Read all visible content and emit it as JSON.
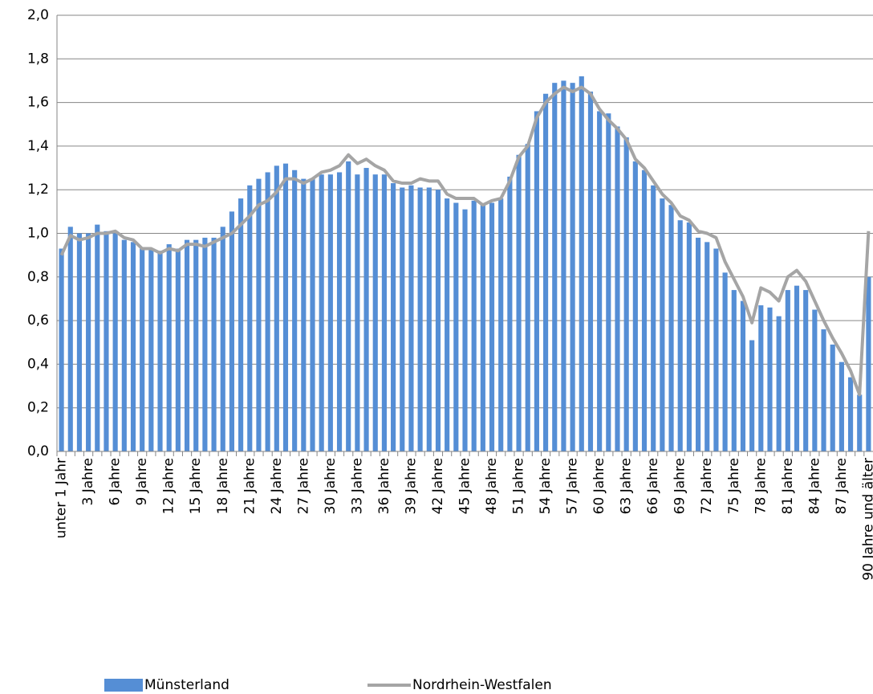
{
  "chart_data": {
    "type": "bar_line",
    "categories": [
      "unter 1 Jahr",
      null,
      null,
      "3 Jahre",
      null,
      null,
      "6 Jahre",
      null,
      null,
      "9 Jahre",
      null,
      null,
      "12 Jahre",
      null,
      null,
      "15 Jahre",
      null,
      null,
      "18 Jahre",
      null,
      null,
      "21 Jahre",
      null,
      null,
      "24 Jahre",
      null,
      null,
      "27 Jahre",
      null,
      null,
      "30 Jahre",
      null,
      null,
      "33 Jahre",
      null,
      null,
      "36 Jahre",
      null,
      null,
      "39 Jahre",
      null,
      null,
      "42 Jahre",
      null,
      null,
      "45 Jahre",
      null,
      null,
      "48 Jahre",
      null,
      null,
      "51 Jahre",
      null,
      null,
      "54 Jahre",
      null,
      null,
      "57 Jahre",
      null,
      null,
      "60 Jahre",
      null,
      null,
      "63 Jahre",
      null,
      null,
      "66 Jahre",
      null,
      null,
      "69 Jahre",
      null,
      null,
      "72 Jahre",
      null,
      null,
      "75 Jahre",
      null,
      null,
      "78 Jahre",
      null,
      null,
      "81 Jahre",
      null,
      null,
      "84 Jahre",
      null,
      null,
      "87 Jahre",
      null,
      null,
      "90 Jahre und älter"
    ],
    "series": [
      {
        "name": "Münsterland",
        "kind": "bar",
        "color": "#558ed5",
        "values": [
          0.93,
          1.03,
          1.0,
          1.0,
          1.04,
          1.01,
          1.0,
          0.97,
          0.96,
          0.93,
          0.93,
          0.92,
          0.95,
          0.93,
          0.97,
          0.97,
          0.98,
          0.98,
          1.03,
          1.1,
          1.16,
          1.22,
          1.25,
          1.28,
          1.31,
          1.32,
          1.29,
          1.25,
          1.25,
          1.27,
          1.27,
          1.28,
          1.33,
          1.27,
          1.3,
          1.27,
          1.27,
          1.23,
          1.21,
          1.22,
          1.21,
          1.21,
          1.2,
          1.16,
          1.14,
          1.11,
          1.15,
          1.13,
          1.14,
          1.16,
          1.26,
          1.36,
          1.41,
          1.56,
          1.64,
          1.69,
          1.7,
          1.69,
          1.72,
          1.65,
          1.56,
          1.55,
          1.49,
          1.44,
          1.33,
          1.29,
          1.22,
          1.16,
          1.13,
          1.06,
          1.05,
          0.98,
          0.96,
          0.93,
          0.82,
          0.74,
          0.69,
          0.51,
          0.67,
          0.66,
          0.62,
          0.74,
          0.76,
          0.74,
          0.65,
          0.56,
          0.49,
          0.41,
          0.34,
          0.26,
          0.8
        ]
      },
      {
        "name": "Nordrhein-Westfalen",
        "kind": "line",
        "color": "#a5a5a5",
        "values": [
          0.9,
          0.99,
          0.97,
          0.98,
          1.0,
          1.0,
          1.01,
          0.98,
          0.97,
          0.93,
          0.93,
          0.91,
          0.93,
          0.92,
          0.95,
          0.95,
          0.94,
          0.96,
          0.98,
          1.0,
          1.04,
          1.08,
          1.13,
          1.15,
          1.19,
          1.25,
          1.25,
          1.23,
          1.25,
          1.28,
          1.29,
          1.31,
          1.36,
          1.32,
          1.34,
          1.31,
          1.29,
          1.24,
          1.23,
          1.23,
          1.25,
          1.24,
          1.24,
          1.18,
          1.16,
          1.16,
          1.16,
          1.13,
          1.15,
          1.16,
          1.24,
          1.35,
          1.4,
          1.53,
          1.6,
          1.64,
          1.67,
          1.65,
          1.67,
          1.64,
          1.57,
          1.52,
          1.48,
          1.43,
          1.34,
          1.3,
          1.24,
          1.18,
          1.14,
          1.08,
          1.06,
          1.01,
          1.0,
          0.98,
          0.87,
          0.79,
          0.71,
          0.59,
          0.75,
          0.73,
          0.69,
          0.8,
          0.83,
          0.78,
          0.69,
          0.6,
          0.52,
          0.45,
          0.37,
          0.26,
          1.01
        ]
      }
    ],
    "ylim": [
      0,
      2
    ],
    "yticks": [
      {
        "value": 0,
        "label": "0,0"
      },
      {
        "value": 0.2,
        "label": "0,2"
      },
      {
        "value": 0.4,
        "label": "0,4"
      },
      {
        "value": 0.6,
        "label": "0,6"
      },
      {
        "value": 0.8,
        "label": "0,8"
      },
      {
        "value": 1,
        "label": "1,0"
      },
      {
        "value": 1.2,
        "label": "1,2"
      },
      {
        "value": 1.4,
        "label": "1,4"
      },
      {
        "value": 1.6,
        "label": "1,6"
      },
      {
        "value": 1.8,
        "label": "1,8"
      },
      {
        "value": 2,
        "label": "2,0"
      }
    ],
    "grid": true,
    "legend": "bottom"
  }
}
